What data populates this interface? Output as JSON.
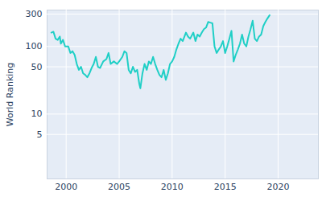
{
  "chart_data": {
    "type": "line",
    "y_label": "World Ranking",
    "color": "#1fcfc6",
    "log": "y",
    "grid": true,
    "xlim": [
      1998.2,
      2023.8
    ],
    "xticks": [
      2000,
      2005,
      2010,
      2015,
      2020
    ],
    "ylim": [
      1.1,
      345
    ],
    "yticks": [
      5,
      10,
      50,
      100,
      300
    ],
    "x": [
      1998.6,
      1998.8,
      1999.0,
      1999.2,
      1999.4,
      1999.5,
      1999.7,
      1999.9,
      2000.2,
      2000.4,
      2000.6,
      2000.8,
      2001.0,
      2001.2,
      2001.4,
      2001.6,
      2001.8,
      2002.0,
      2002.2,
      2002.4,
      2002.6,
      2002.8,
      2003.0,
      2003.2,
      2003.5,
      2003.8,
      2004.0,
      2004.2,
      2004.5,
      2004.8,
      2005.0,
      2005.3,
      2005.5,
      2005.7,
      2005.9,
      2006.1,
      2006.3,
      2006.5,
      2006.7,
      2006.9,
      2007.0,
      2007.2,
      2007.4,
      2007.6,
      2007.8,
      2008.0,
      2008.2,
      2008.4,
      2008.6,
      2008.8,
      2009.0,
      2009.2,
      2009.4,
      2009.6,
      2009.8,
      2010.0,
      2010.2,
      2010.4,
      2010.6,
      2010.8,
      2011.0,
      2011.3,
      2011.5,
      2011.7,
      2012.0,
      2012.2,
      2012.4,
      2012.6,
      2012.8,
      2013.0,
      2013.2,
      2013.4,
      2013.6,
      2013.8,
      2014.0,
      2014.2,
      2014.4,
      2014.6,
      2014.8,
      2015.0,
      2015.2,
      2015.4,
      2015.6,
      2015.8,
      2016.0,
      2016.2,
      2016.4,
      2016.6,
      2016.8,
      2017.0,
      2017.2,
      2017.4,
      2017.6,
      2017.8,
      2018.0,
      2018.2,
      2018.4,
      2018.6,
      2018.8,
      2019.0,
      2019.2
    ],
    "values": [
      160,
      165,
      130,
      125,
      140,
      110,
      125,
      100,
      100,
      80,
      85,
      75,
      55,
      45,
      50,
      40,
      38,
      35,
      40,
      48,
      55,
      70,
      50,
      48,
      60,
      65,
      80,
      55,
      60,
      55,
      60,
      70,
      85,
      80,
      45,
      40,
      50,
      42,
      45,
      28,
      24,
      40,
      55,
      45,
      60,
      55,
      70,
      55,
      45,
      38,
      35,
      45,
      32,
      40,
      55,
      60,
      70,
      90,
      110,
      130,
      120,
      160,
      140,
      130,
      160,
      120,
      150,
      140,
      160,
      180,
      190,
      230,
      225,
      220,
      100,
      80,
      90,
      100,
      120,
      80,
      100,
      130,
      170,
      60,
      75,
      90,
      110,
      150,
      110,
      100,
      140,
      180,
      240,
      130,
      120,
      140,
      150,
      200,
      230,
      260,
      290
    ]
  }
}
